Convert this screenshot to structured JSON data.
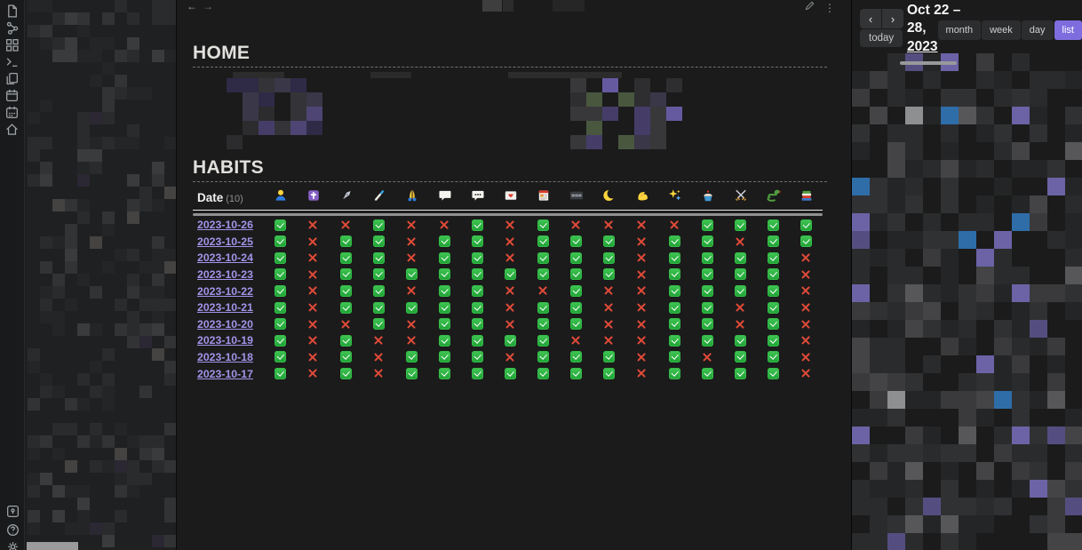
{
  "topbar": {
    "back": "←",
    "forward": "→",
    "more": "⋮"
  },
  "activity_bar": {
    "top": [
      "daily-note",
      "graph",
      "dashboard",
      "terminal",
      "templates",
      "calendar",
      "periodic-notes",
      "home"
    ],
    "bottom": [
      "vault",
      "help",
      "settings"
    ]
  },
  "home_section": {
    "title": "HOME"
  },
  "habits_section": {
    "title": "HABITS",
    "date_label": "Date",
    "date_count": "(10)",
    "columns": [
      "person",
      "latin-cross",
      "fountain-pen",
      "toothbrush",
      "folded-hands",
      "speech-bubble",
      "speech-bubble-dots",
      "love-letter",
      "newspaper",
      "film-frames",
      "crescent-moon",
      "flexed-biceps",
      "sparkles",
      "cupcake",
      "crossed-swords",
      "snake",
      "books"
    ],
    "rows": [
      {
        "date": "2023-10-26",
        "checks": [
          true,
          false,
          false,
          true,
          false,
          false,
          true,
          false,
          true,
          false,
          false,
          false,
          false,
          true,
          true,
          true,
          true
        ]
      },
      {
        "date": "2023-10-25",
        "checks": [
          true,
          false,
          true,
          true,
          false,
          true,
          true,
          false,
          true,
          true,
          true,
          false,
          true,
          true,
          false,
          true,
          true
        ]
      },
      {
        "date": "2023-10-24",
        "checks": [
          true,
          false,
          true,
          true,
          false,
          true,
          true,
          false,
          true,
          true,
          true,
          false,
          true,
          true,
          true,
          true,
          false
        ]
      },
      {
        "date": "2023-10-23",
        "checks": [
          true,
          false,
          true,
          true,
          true,
          true,
          true,
          true,
          true,
          true,
          true,
          false,
          true,
          true,
          true,
          true,
          false
        ]
      },
      {
        "date": "2023-10-22",
        "checks": [
          true,
          false,
          true,
          true,
          false,
          true,
          true,
          false,
          false,
          true,
          false,
          false,
          true,
          true,
          true,
          true,
          false
        ]
      },
      {
        "date": "2023-10-21",
        "checks": [
          true,
          false,
          true,
          true,
          true,
          true,
          true,
          false,
          true,
          true,
          false,
          false,
          true,
          true,
          false,
          true,
          false
        ]
      },
      {
        "date": "2023-10-20",
        "checks": [
          true,
          false,
          false,
          true,
          false,
          true,
          true,
          false,
          true,
          true,
          false,
          false,
          true,
          true,
          false,
          true,
          false
        ]
      },
      {
        "date": "2023-10-19",
        "checks": [
          true,
          false,
          true,
          false,
          false,
          true,
          true,
          true,
          true,
          false,
          false,
          false,
          true,
          true,
          true,
          true,
          false
        ]
      },
      {
        "date": "2023-10-18",
        "checks": [
          true,
          false,
          true,
          false,
          true,
          true,
          true,
          false,
          true,
          true,
          true,
          false,
          true,
          false,
          true,
          true,
          false
        ]
      },
      {
        "date": "2023-10-17",
        "checks": [
          true,
          false,
          true,
          false,
          true,
          true,
          true,
          true,
          true,
          true,
          true,
          false,
          true,
          true,
          true,
          true,
          false
        ]
      }
    ]
  },
  "calendar_panel": {
    "prev": "‹",
    "next": "›",
    "today_label": "today",
    "title_lines": [
      "Oct 22 –",
      "28,",
      "2023"
    ],
    "title_full": "Oct 22 – 28, 2023",
    "views": [
      {
        "label": "month",
        "active": false
      },
      {
        "label": "week",
        "active": false
      },
      {
        "label": "day",
        "active": false
      },
      {
        "label": "list",
        "active": true
      }
    ]
  },
  "colors": {
    "accent_purple": "#7e6dde",
    "check_green": "#27ae3a",
    "cross_red": "#e14a38",
    "link_purple": "#a393e8"
  }
}
